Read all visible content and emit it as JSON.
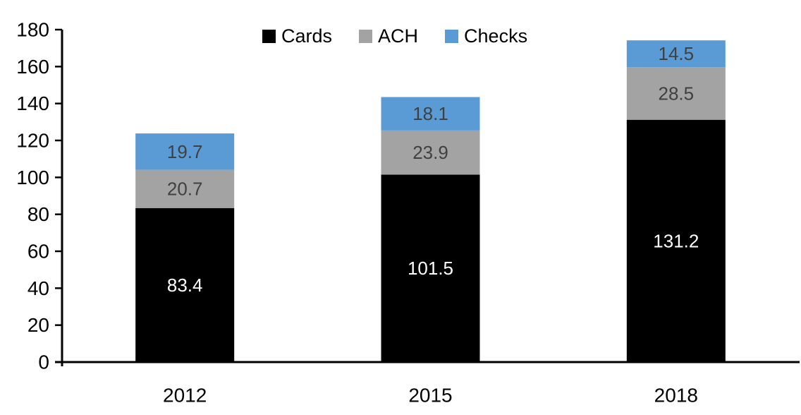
{
  "chart_data": {
    "type": "bar",
    "stacked": true,
    "categories": [
      "2012",
      "2015",
      "2018"
    ],
    "series": [
      {
        "name": "Cards",
        "color": "#000000",
        "label_color": "#ffffff",
        "values": [
          83.4,
          101.5,
          131.2
        ]
      },
      {
        "name": "ACH",
        "color": "#a3a3a3",
        "label_color": "#404040",
        "values": [
          20.7,
          23.9,
          28.5
        ]
      },
      {
        "name": "Checks",
        "color": "#5b9bd5",
        "label_color": "#404040",
        "values": [
          19.7,
          18.1,
          14.5
        ]
      }
    ],
    "ylim": [
      0,
      180
    ],
    "ytick_step": 20,
    "yticks": [
      0,
      20,
      40,
      60,
      80,
      100,
      120,
      140,
      160,
      180
    ],
    "grid": false,
    "legend_position": "top",
    "axis_color": "#000000",
    "background": "#ffffff"
  }
}
